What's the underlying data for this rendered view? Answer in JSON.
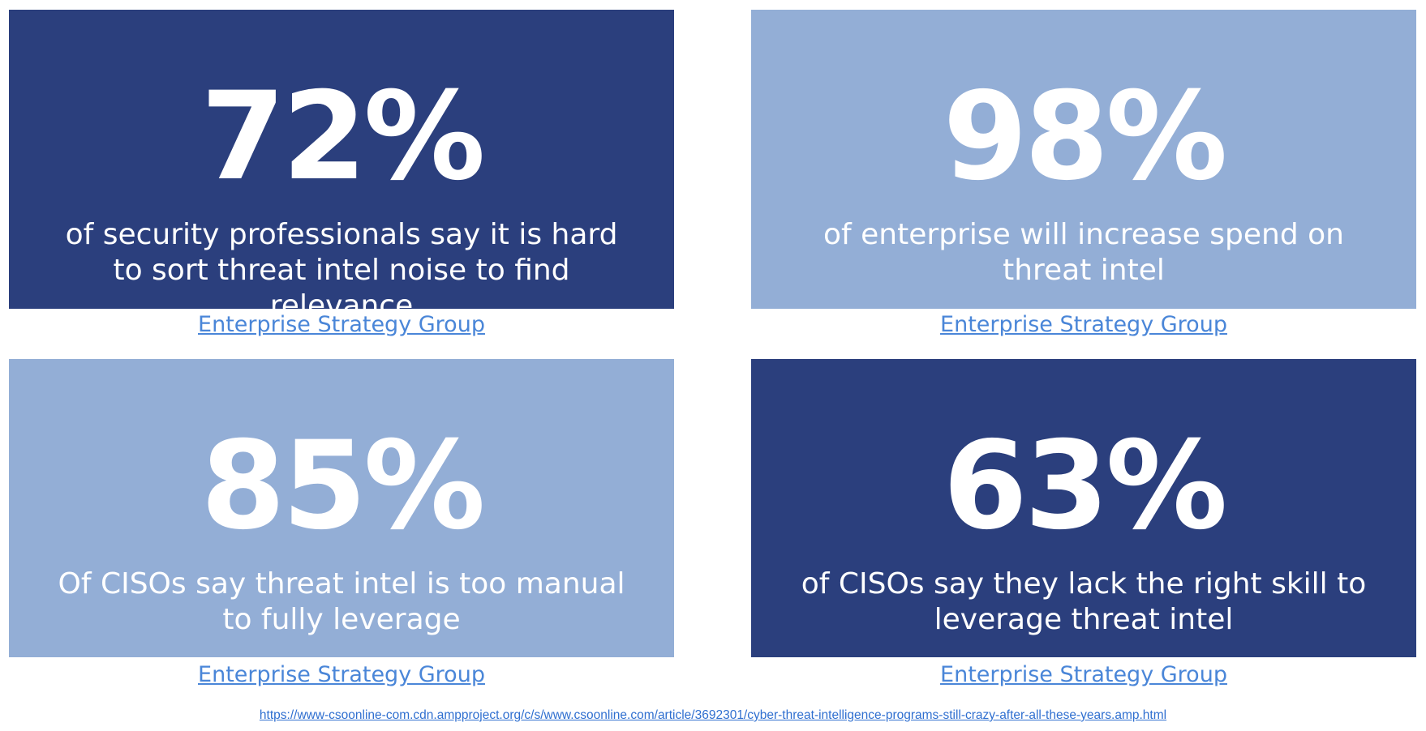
{
  "cards": [
    {
      "stat": "72%",
      "description": "of security professionals say it is hard to sort threat intel noise to find relevance",
      "source": "Enterprise Strategy Group",
      "theme": "dark"
    },
    {
      "stat": "98%",
      "description": "of enterprise will increase spend on threat intel",
      "source": "Enterprise Strategy Group",
      "theme": "light"
    },
    {
      "stat": "85%",
      "description": "Of CISOs say threat intel is too manual to fully leverage",
      "source": "Enterprise Strategy Group",
      "theme": "light"
    },
    {
      "stat": "63%",
      "description": "of CISOs say they lack the right skill to leverage threat intel",
      "source": "Enterprise Strategy Group",
      "theme": "dark"
    }
  ],
  "footer": {
    "url": "https://www-csoonline-com.cdn.ampproject.org/c/s/www.csoonline.com/article/3692301/cyber-threat-intelligence-programs-still-crazy-after-all-these-years.amp.html"
  },
  "colors": {
    "dark_card": "#2b3f7d",
    "light_card": "#93aed6",
    "card_text": "#ffffff",
    "link": "#4a86d8"
  }
}
